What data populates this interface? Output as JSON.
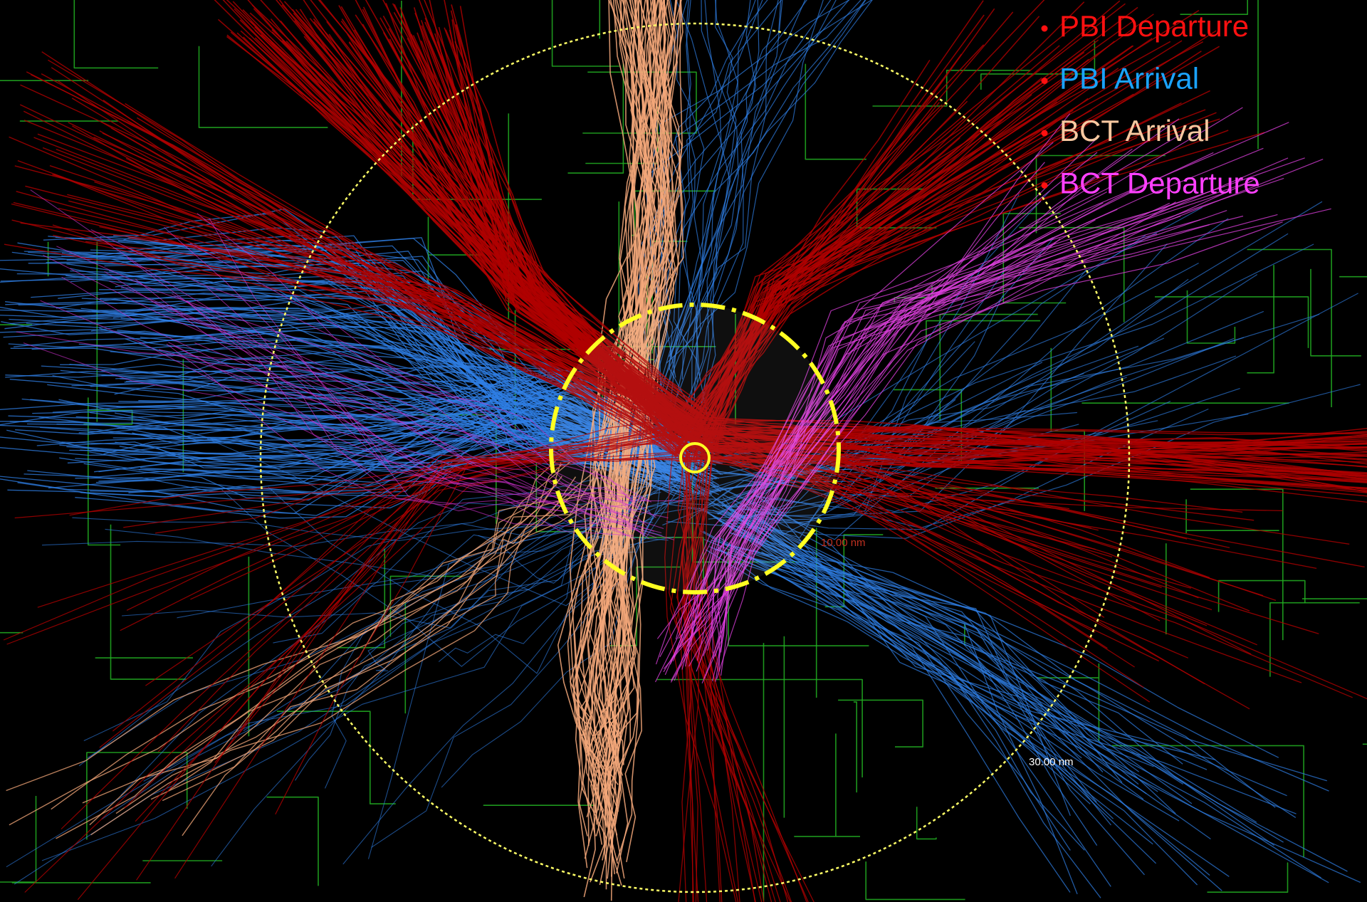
{
  "legend": [
    {
      "label": "PBI Departure",
      "color": "#ff1010"
    },
    {
      "label": "PBI Arrival",
      "color": "#1aa3ff"
    },
    {
      "label": "BCT Arrival",
      "color": "#f7c8a0"
    },
    {
      "label": "BCT Departure",
      "color": "#ff40ff"
    }
  ],
  "range_rings": [
    {
      "label": "10.00 nm",
      "color": "#c03020"
    },
    {
      "label": "30.00 nm",
      "color": "#ffffff"
    }
  ]
}
